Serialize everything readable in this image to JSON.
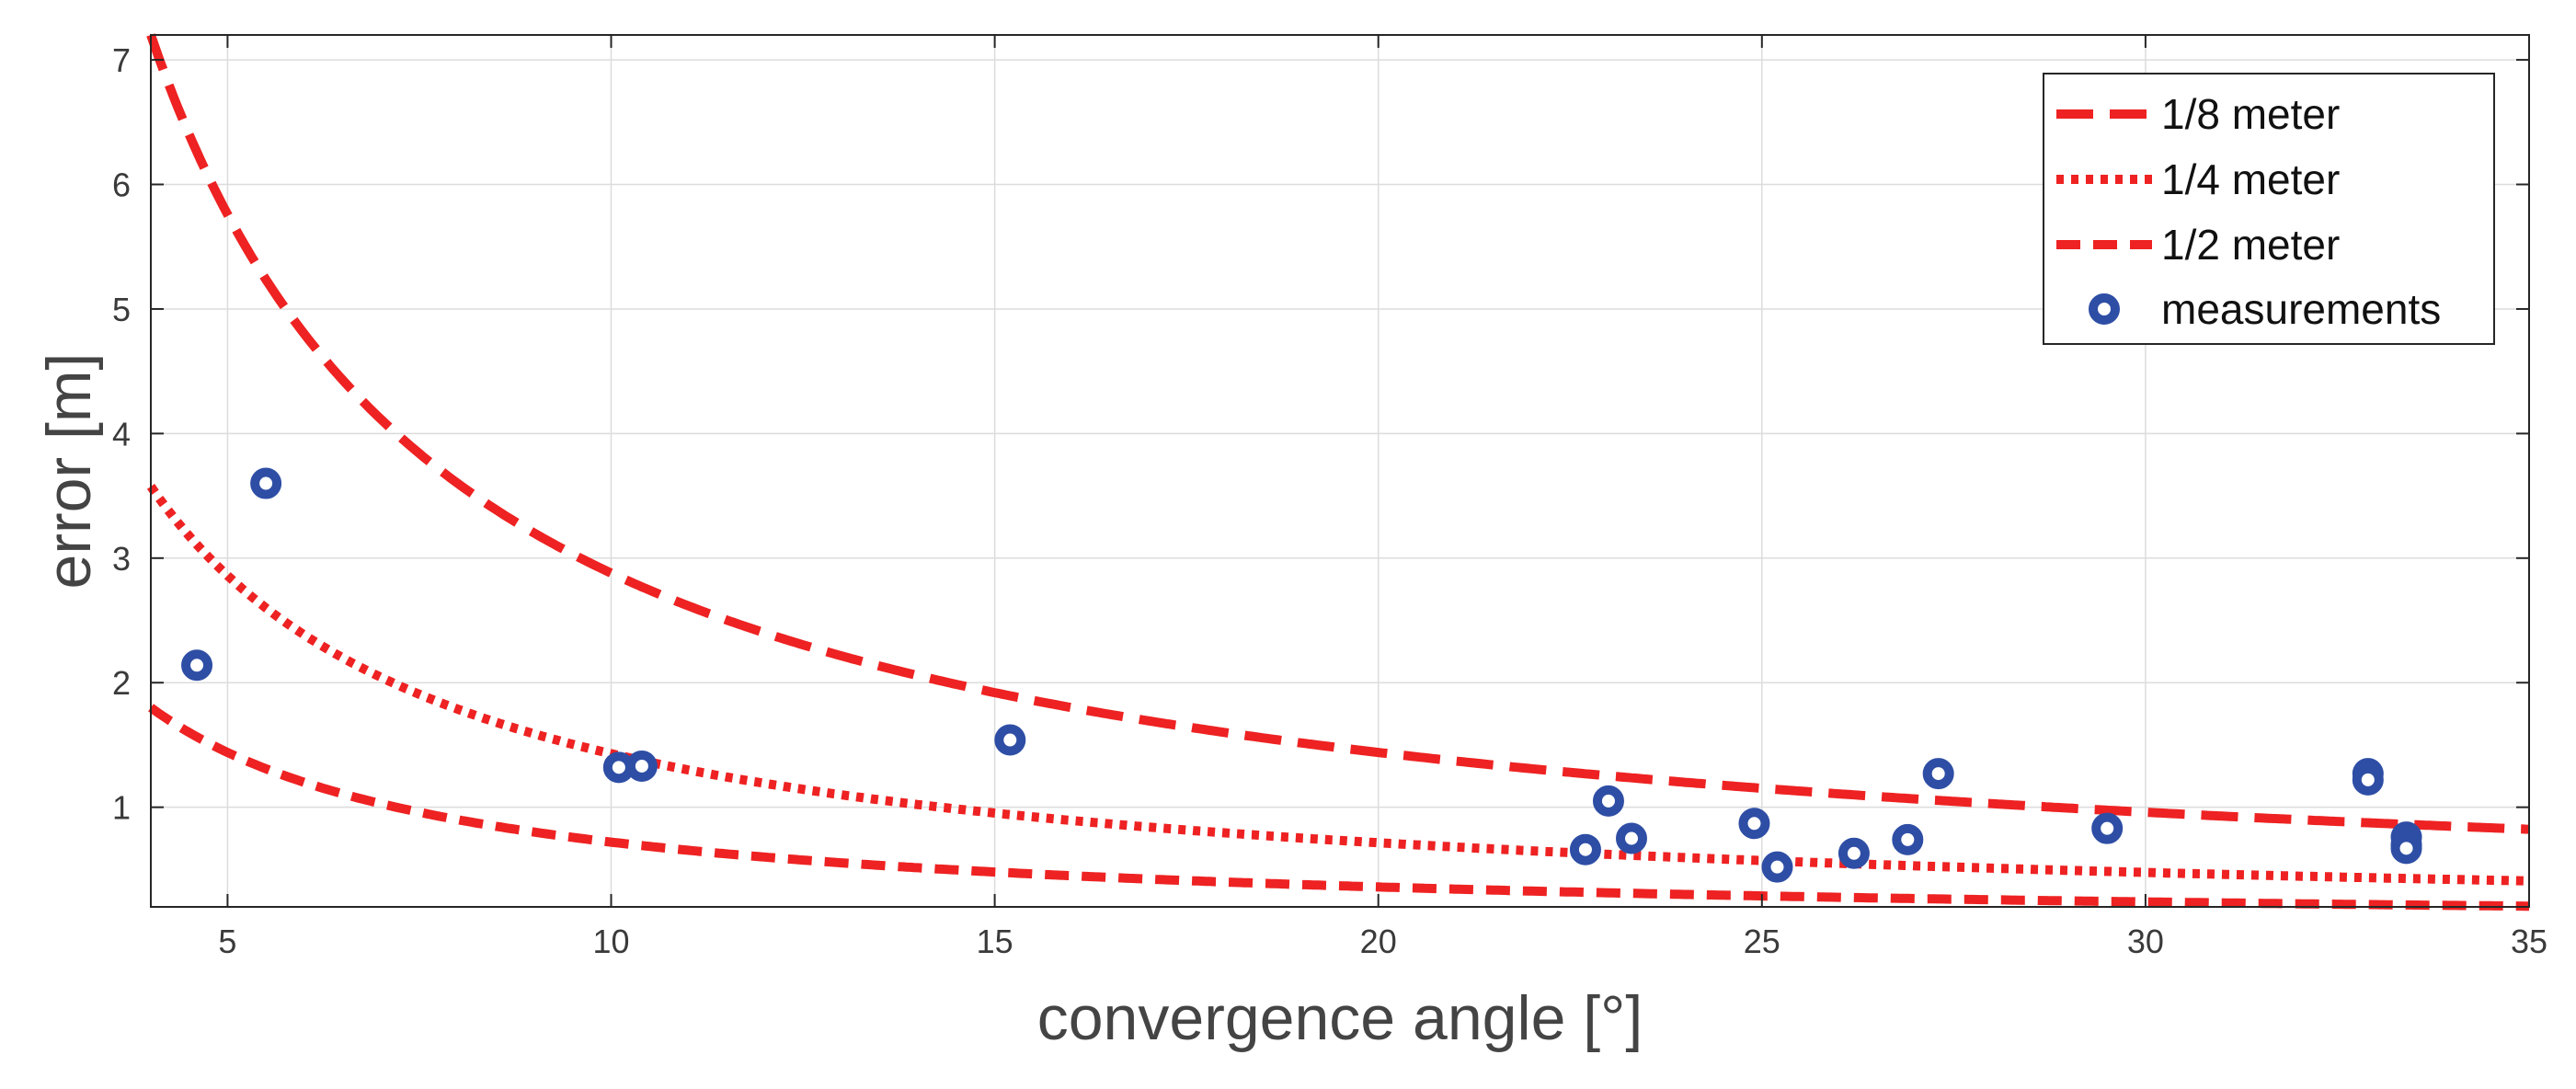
{
  "chart_data": {
    "type": "scatter",
    "title": "",
    "xlabel": "convergence angle [°]",
    "ylabel": "error [m]",
    "xlim": [
      4,
      35
    ],
    "ylim": [
      0.2,
      7.2
    ],
    "xticks": [
      5,
      10,
      15,
      20,
      25,
      30,
      35
    ],
    "yticks": [
      1,
      2,
      3,
      4,
      5,
      6,
      7
    ],
    "xtick_labels": [
      "5",
      "10",
      "15",
      "20",
      "25",
      "30",
      "35"
    ],
    "ytick_labels": [
      "1",
      "2",
      "3",
      "4",
      "5",
      "6",
      "7"
    ],
    "grid": true,
    "legend_position": "top-right",
    "series": [
      {
        "name": "1/8 meter",
        "style": "long-dash",
        "color": "#ee2222",
        "k": 28.8
      },
      {
        "name": "1/4 meter",
        "style": "dotted",
        "color": "#ee2222",
        "k": 14.3
      },
      {
        "name": "1/2 meter",
        "style": "dashed",
        "color": "#ee2222",
        "k": 7.2
      },
      {
        "name": "measurements",
        "style": "marker",
        "color": "#2e4ea5",
        "points": [
          [
            4.6,
            2.14
          ],
          [
            5.5,
            3.6
          ],
          [
            10.1,
            1.32
          ],
          [
            10.4,
            1.33
          ],
          [
            15.2,
            1.54
          ],
          [
            22.7,
            0.66
          ],
          [
            23.0,
            1.05
          ],
          [
            23.3,
            0.75
          ],
          [
            24.9,
            0.87
          ],
          [
            25.2,
            0.52
          ],
          [
            26.2,
            0.63
          ],
          [
            26.9,
            0.74
          ],
          [
            27.3,
            1.27
          ],
          [
            29.5,
            0.83
          ],
          [
            32.9,
            1.27
          ],
          [
            32.9,
            1.22
          ],
          [
            33.4,
            0.76
          ],
          [
            33.4,
            0.7
          ],
          [
            33.4,
            0.67
          ]
        ]
      }
    ]
  }
}
